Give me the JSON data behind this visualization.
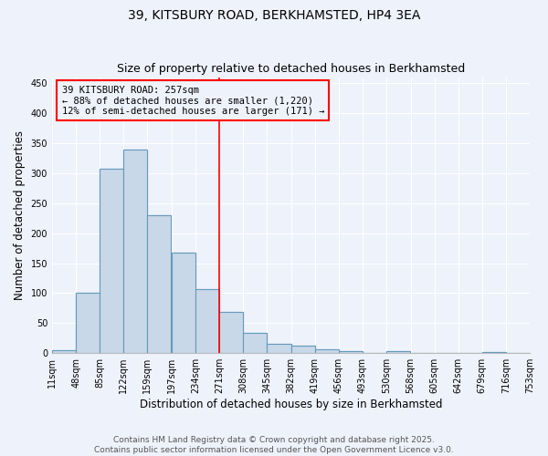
{
  "title": "39, KITSBURY ROAD, BERKHAMSTED, HP4 3EA",
  "subtitle": "Size of property relative to detached houses in Berkhamsted",
  "xlabel": "Distribution of detached houses by size in Berkhamsted",
  "ylabel": "Number of detached properties",
  "bar_color": "#c8d8e8",
  "bar_edge_color": "#6699bb",
  "bar_edge_width": 0.8,
  "bin_labels": [
    "11sqm",
    "48sqm",
    "85sqm",
    "122sqm",
    "159sqm",
    "197sqm",
    "234sqm",
    "271sqm",
    "308sqm",
    "345sqm",
    "382sqm",
    "419sqm",
    "456sqm",
    "493sqm",
    "530sqm",
    "568sqm",
    "605sqm",
    "642sqm",
    "679sqm",
    "716sqm",
    "753sqm"
  ],
  "bin_values": [
    5,
    100,
    307,
    340,
    230,
    167,
    107,
    69,
    34,
    15,
    12,
    7,
    3,
    0,
    3,
    0,
    0,
    0,
    2,
    0
  ],
  "bin_width": 37,
  "bin_starts": [
    11,
    48,
    85,
    122,
    159,
    197,
    234,
    271,
    308,
    345,
    382,
    419,
    456,
    493,
    530,
    568,
    605,
    642,
    679,
    716
  ],
  "red_line_x": 271,
  "ylim": [
    0,
    460
  ],
  "yticks": [
    0,
    50,
    100,
    150,
    200,
    250,
    300,
    350,
    400,
    450
  ],
  "annotation_title": "39 KITSBURY ROAD: 257sqm",
  "annotation_line1": "← 88% of detached houses are smaller (1,220)",
  "annotation_line2": "12% of semi-detached houses are larger (171) →",
  "footer1": "Contains HM Land Registry data © Crown copyright and database right 2025.",
  "footer2": "Contains public sector information licensed under the Open Government Licence v3.0.",
  "background_color": "#eef2fb",
  "grid_color": "#ffffff",
  "title_fontsize": 10,
  "subtitle_fontsize": 9,
  "axis_label_fontsize": 8.5,
  "tick_fontsize": 7,
  "annotation_fontsize": 7.5,
  "footer_fontsize": 6.5
}
